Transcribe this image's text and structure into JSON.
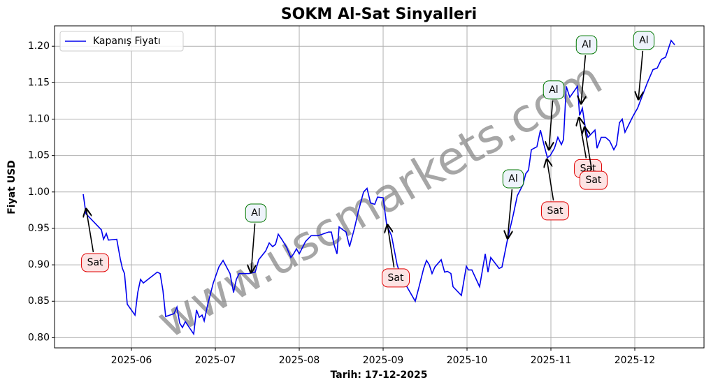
{
  "chart_data": {
    "type": "line",
    "title": "SOKM Al-Sat Sinyalleri",
    "xlabel": "Tarih: 17-12-2025",
    "ylabel": "Fiyat USD",
    "watermark": "www.uscmarkets.com",
    "grid": true,
    "legend": "upper left",
    "xlim": [
      5.083,
      12.825
    ],
    "ylim": [
      0.786,
      1.228
    ],
    "xticks": [
      {
        "value": 6,
        "label": "2025-06"
      },
      {
        "value": 7,
        "label": "2025-07"
      },
      {
        "value": 8,
        "label": "2025-08"
      },
      {
        "value": 9,
        "label": "2025-09"
      },
      {
        "value": 10,
        "label": "2025-10"
      },
      {
        "value": 11,
        "label": "2025-11"
      },
      {
        "value": 12,
        "label": "2025-12"
      }
    ],
    "yticks": [
      {
        "value": 0.8,
        "label": "0.80"
      },
      {
        "value": 0.85,
        "label": "0.85"
      },
      {
        "value": 0.9,
        "label": "0.90"
      },
      {
        "value": 0.95,
        "label": "0.95"
      },
      {
        "value": 1.0,
        "label": "1.00"
      },
      {
        "value": 1.05,
        "label": "1.05"
      },
      {
        "value": 1.1,
        "label": "1.10"
      },
      {
        "value": 1.15,
        "label": "1.15"
      },
      {
        "value": 1.2,
        "label": "1.20"
      }
    ],
    "x": [
      5.425,
      5.458,
      5.558,
      5.642,
      5.667,
      5.7,
      5.725,
      5.825,
      5.867,
      5.892,
      5.917,
      5.95,
      6.042,
      6.075,
      6.108,
      6.142,
      6.308,
      6.342,
      6.375,
      6.408,
      6.508,
      6.542,
      6.575,
      6.608,
      6.642,
      6.742,
      6.775,
      6.808,
      6.842,
      6.867,
      6.908,
      6.975,
      7.042,
      7.092,
      7.175,
      7.217,
      7.25,
      7.283,
      7.4,
      7.475,
      7.517,
      7.6,
      7.642,
      7.683,
      7.717,
      7.75,
      7.792,
      7.85,
      7.9,
      7.933,
      7.967,
      8.0,
      8.075,
      8.142,
      8.225,
      8.35,
      8.383,
      8.417,
      8.45,
      8.475,
      8.558,
      8.6,
      8.658,
      8.708,
      8.767,
      8.808,
      8.85,
      8.9,
      8.933,
      9.0,
      9.042,
      9.1,
      9.167,
      9.225,
      9.283,
      9.333,
      9.383,
      9.433,
      9.483,
      9.517,
      9.55,
      9.583,
      9.617,
      9.692,
      9.733,
      9.767,
      9.808,
      9.833,
      9.933,
      9.992,
      10.017,
      10.058,
      10.15,
      10.217,
      10.25,
      10.283,
      10.35,
      10.383,
      10.417,
      10.483,
      10.55,
      10.6,
      10.667,
      10.7,
      10.733,
      10.767,
      10.833,
      10.875,
      10.917,
      10.958,
      10.992,
      11.042,
      11.083,
      11.125,
      11.15,
      11.183,
      11.225,
      11.317,
      11.342,
      11.375,
      11.408,
      11.442,
      11.525,
      11.55,
      11.6,
      11.65,
      11.7,
      11.75,
      11.783,
      11.817,
      11.85,
      11.883,
      11.983,
      12.033,
      12.083,
      12.15,
      12.217,
      12.267,
      12.317,
      12.367,
      12.433,
      12.475
    ],
    "series": [
      {
        "name": "Kapanış Fiyatı",
        "color": "#0000ee",
        "values": [
          0.997,
          0.97,
          0.958,
          0.948,
          0.935,
          0.943,
          0.934,
          0.935,
          0.908,
          0.895,
          0.888,
          0.846,
          0.831,
          0.862,
          0.88,
          0.875,
          0.89,
          0.888,
          0.865,
          0.829,
          0.833,
          0.842,
          0.82,
          0.814,
          0.822,
          0.805,
          0.838,
          0.828,
          0.831,
          0.823,
          0.845,
          0.875,
          0.897,
          0.906,
          0.888,
          0.862,
          0.88,
          0.888,
          0.888,
          0.89,
          0.907,
          0.919,
          0.93,
          0.925,
          0.928,
          0.942,
          0.935,
          0.924,
          0.91,
          0.915,
          0.922,
          0.915,
          0.932,
          0.94,
          0.94,
          0.945,
          0.945,
          0.927,
          0.915,
          0.952,
          0.945,
          0.925,
          0.95,
          0.975,
          1.0,
          1.005,
          0.985,
          0.983,
          0.993,
          0.992,
          0.955,
          0.94,
          0.9,
          0.88,
          0.87,
          0.86,
          0.85,
          0.872,
          0.895,
          0.906,
          0.9,
          0.888,
          0.897,
          0.907,
          0.89,
          0.891,
          0.888,
          0.87,
          0.858,
          0.898,
          0.893,
          0.893,
          0.87,
          0.915,
          0.89,
          0.91,
          0.9,
          0.895,
          0.897,
          0.935,
          0.968,
          0.995,
          1.01,
          1.025,
          1.03,
          1.058,
          1.062,
          1.085,
          1.065,
          1.047,
          1.05,
          1.06,
          1.075,
          1.065,
          1.072,
          1.145,
          1.13,
          1.145,
          1.105,
          1.115,
          1.09,
          1.075,
          1.085,
          1.06,
          1.075,
          1.075,
          1.07,
          1.058,
          1.065,
          1.095,
          1.1,
          1.082,
          1.105,
          1.115,
          1.13,
          1.15,
          1.168,
          1.17,
          1.182,
          1.185,
          1.208,
          1.202
        ]
      }
    ],
    "annotations": [
      {
        "text": "Sat",
        "x": 5.458,
        "y": 0.978,
        "text_x": 5.567,
        "text_y": 0.903,
        "color": "#e00000",
        "fill": "#fde3e3"
      },
      {
        "text": "Al",
        "x": 7.425,
        "y": 0.888,
        "text_x": 7.483,
        "text_y": 0.971,
        "color": "#007700",
        "fill": "#eef3fb"
      },
      {
        "text": "Sat",
        "x": 9.05,
        "y": 0.956,
        "text_x": 9.15,
        "text_y": 0.882,
        "color": "#e00000",
        "fill": "#fde3e3"
      },
      {
        "text": "Al",
        "x": 10.483,
        "y": 0.935,
        "text_x": 10.55,
        "text_y": 1.018,
        "color": "#007700",
        "fill": "#eef3fb"
      },
      {
        "text": "Sat",
        "x": 10.95,
        "y": 1.046,
        "text_x": 11.05,
        "text_y": 0.974,
        "color": "#e00000",
        "fill": "#fde3e3"
      },
      {
        "text": "Al",
        "x": 10.975,
        "y": 1.057,
        "text_x": 11.033,
        "text_y": 1.14,
        "color": "#007700",
        "fill": "#eef3fb"
      },
      {
        "text": "Sat",
        "x": 11.333,
        "y": 1.103,
        "text_x": 11.442,
        "text_y": 1.032,
        "color": "#e00000",
        "fill": "#fde3e3"
      },
      {
        "text": "Al",
        "x": 11.358,
        "y": 1.12,
        "text_x": 11.425,
        "text_y": 1.202,
        "color": "#007700",
        "fill": "#eef3fb"
      },
      {
        "text": "Sat",
        "x": 11.4,
        "y": 1.09,
        "text_x": 11.508,
        "text_y": 1.016,
        "color": "#e00000",
        "fill": "#fde3e3"
      },
      {
        "text": "Al",
        "x": 12.042,
        "y": 1.126,
        "text_x": 12.108,
        "text_y": 1.208,
        "color": "#007700",
        "fill": "#eef3fb"
      }
    ]
  }
}
